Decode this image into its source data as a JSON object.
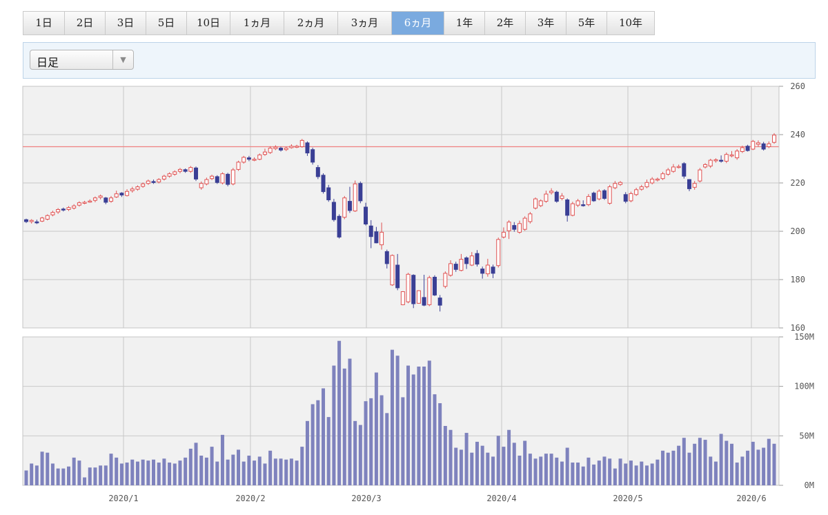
{
  "range_tabs": [
    {
      "label": "1日",
      "w": 60
    },
    {
      "label": "2日",
      "w": 59
    },
    {
      "label": "3日",
      "w": 59
    },
    {
      "label": "5日",
      "w": 59
    },
    {
      "label": "10日",
      "w": 63
    },
    {
      "label": "1ヵ月",
      "w": 78
    },
    {
      "label": "2ヵ月",
      "w": 78
    },
    {
      "label": "3ヵ月",
      "w": 78
    },
    {
      "label": "6ヵ月",
      "w": 76
    },
    {
      "label": "1年",
      "w": 59
    },
    {
      "label": "2年",
      "w": 59
    },
    {
      "label": "3年",
      "w": 59
    },
    {
      "label": "5年",
      "w": 59
    },
    {
      "label": "10年",
      "w": 68
    }
  ],
  "active_tab": "6ヵ月",
  "interval_select": {
    "value": "日足"
  },
  "colors": {
    "up": "#e05050",
    "down": "#3a3f95",
    "volume": "#7e82bd",
    "ref_line": "#f08080",
    "grid": "#c8c8c8"
  },
  "chart_data": {
    "type": "candlestick",
    "price_axis": {
      "min": 160,
      "max": 260,
      "ticks": [
        160,
        180,
        200,
        220,
        240,
        260
      ]
    },
    "volume_axis": {
      "min": 0,
      "max": 150,
      "unit": "M",
      "tick_labels": [
        "0M",
        "50M",
        "100M",
        "150M"
      ]
    },
    "x_labels": [
      "2020/1",
      "2020/2",
      "2020/3",
      "2020/4",
      "2020/5",
      "2020/6"
    ],
    "reference_line": 235,
    "candles": [
      [
        204.8,
        204.0,
        205.2,
        203.4,
        15
      ],
      [
        204.0,
        204.5,
        205.0,
        203.2,
        22
      ],
      [
        203.9,
        203.6,
        204.8,
        203.0,
        20
      ],
      [
        204.2,
        205.5,
        206.0,
        203.8,
        34
      ],
      [
        205.0,
        206.5,
        207.0,
        204.5,
        33
      ],
      [
        206.8,
        207.8,
        208.5,
        206.2,
        22
      ],
      [
        208.0,
        209.0,
        209.6,
        207.2,
        17
      ],
      [
        209.2,
        209.0,
        209.8,
        208.2,
        17
      ],
      [
        209.0,
        209.8,
        210.4,
        208.4,
        19
      ],
      [
        209.6,
        210.5,
        211.2,
        209.0,
        28
      ],
      [
        210.8,
        211.8,
        212.4,
        210.2,
        25
      ],
      [
        212.0,
        212.0,
        212.6,
        211.2,
        8
      ],
      [
        212.2,
        212.5,
        213.2,
        211.8,
        18
      ],
      [
        212.8,
        213.8,
        214.4,
        212.0,
        18
      ],
      [
        214.0,
        214.6,
        215.2,
        213.2,
        20
      ],
      [
        213.8,
        212.0,
        214.2,
        211.2,
        20
      ],
      [
        212.4,
        213.8,
        214.6,
        211.8,
        32
      ],
      [
        214.2,
        215.5,
        216.8,
        213.8,
        28
      ],
      [
        215.8,
        215.0,
        216.2,
        214.2,
        22
      ],
      [
        214.8,
        216.5,
        217.4,
        214.4,
        23
      ],
      [
        216.8,
        217.5,
        218.4,
        216.0,
        26
      ],
      [
        217.4,
        218.4,
        219.0,
        216.8,
        24
      ],
      [
        218.6,
        219.6,
        220.2,
        218.0,
        26
      ],
      [
        219.8,
        220.8,
        221.4,
        219.2,
        25
      ],
      [
        220.6,
        220.2,
        221.4,
        219.6,
        26
      ],
      [
        220.4,
        221.4,
        222.0,
        219.8,
        23
      ],
      [
        221.6,
        222.8,
        223.4,
        221.0,
        27
      ],
      [
        222.8,
        223.8,
        224.4,
        222.2,
        23
      ],
      [
        223.6,
        224.6,
        225.2,
        223.0,
        22
      ],
      [
        224.8,
        225.6,
        226.2,
        224.0,
        25
      ],
      [
        225.5,
        224.8,
        226.0,
        224.2,
        28
      ],
      [
        224.8,
        226.4,
        227.0,
        224.2,
        37
      ],
      [
        226.2,
        221.6,
        226.8,
        220.8,
        43
      ],
      [
        218.0,
        219.8,
        220.6,
        217.2,
        30
      ],
      [
        219.6,
        221.4,
        222.2,
        219.0,
        28
      ],
      [
        221.8,
        222.8,
        223.4,
        221.2,
        39
      ],
      [
        222.6,
        220.2,
        223.2,
        219.6,
        24
      ],
      [
        220.0,
        223.8,
        224.4,
        219.4,
        51
      ],
      [
        223.6,
        219.4,
        224.2,
        218.6,
        26
      ],
      [
        219.6,
        225.4,
        226.2,
        219.0,
        31
      ],
      [
        225.6,
        228.6,
        229.2,
        225.0,
        36
      ],
      [
        228.6,
        230.6,
        231.2,
        228.0,
        24
      ],
      [
        230.4,
        229.8,
        231.2,
        229.0,
        30
      ],
      [
        229.6,
        229.8,
        230.6,
        229.0,
        25
      ],
      [
        229.8,
        231.6,
        232.2,
        229.4,
        29
      ],
      [
        231.8,
        232.8,
        234.2,
        231.2,
        22
      ],
      [
        232.6,
        234.4,
        235.2,
        232.0,
        35
      ],
      [
        234.2,
        234.8,
        235.6,
        233.6,
        27
      ],
      [
        234.4,
        233.6,
        235.0,
        233.0,
        27
      ],
      [
        233.8,
        234.4,
        235.0,
        233.2,
        26
      ],
      [
        234.6,
        235.2,
        236.0,
        234.2,
        27
      ],
      [
        235.0,
        235.2,
        235.8,
        234.4,
        25
      ],
      [
        235.0,
        237.6,
        238.2,
        234.6,
        39
      ],
      [
        236.6,
        232.4,
        237.2,
        231.2,
        65
      ],
      [
        233.8,
        228.6,
        234.6,
        227.6,
        82
      ],
      [
        226.4,
        222.6,
        227.4,
        221.6,
        86
      ],
      [
        223.2,
        216.4,
        224.0,
        215.6,
        98
      ],
      [
        218.0,
        213.0,
        219.2,
        212.2,
        69
      ],
      [
        212.0,
        204.8,
        213.4,
        204.0,
        121
      ],
      [
        206.2,
        197.6,
        207.0,
        197.0,
        146
      ],
      [
        205.8,
        213.8,
        214.6,
        205.0,
        118
      ],
      [
        212.4,
        208.6,
        218.4,
        207.6,
        128
      ],
      [
        208.4,
        219.6,
        221.0,
        208.0,
        65
      ],
      [
        219.8,
        212.6,
        220.6,
        211.6,
        61
      ],
      [
        210.0,
        203.0,
        211.8,
        202.4,
        85
      ],
      [
        202.2,
        197.8,
        204.6,
        193.0,
        88
      ],
      [
        199.8,
        195.2,
        201.8,
        195.0,
        114
      ],
      [
        194.4,
        199.6,
        203.6,
        192.4,
        91
      ],
      [
        191.6,
        186.6,
        192.4,
        184.6,
        73
      ],
      [
        177.8,
        190.0,
        190.4,
        177.4,
        137
      ],
      [
        186.0,
        176.6,
        190.6,
        175.6,
        131
      ],
      [
        169.6,
        175.0,
        175.2,
        169.4,
        89
      ],
      [
        170.8,
        182.2,
        182.8,
        170.2,
        121
      ],
      [
        181.8,
        170.0,
        182.2,
        168.2,
        112
      ],
      [
        170.2,
        175.4,
        175.6,
        170.0,
        120
      ],
      [
        172.6,
        169.4,
        182.0,
        169.0,
        120
      ],
      [
        169.6,
        180.8,
        181.6,
        169.0,
        126
      ],
      [
        181.0,
        173.6,
        181.8,
        173.2,
        92
      ],
      [
        172.4,
        169.4,
        173.6,
        166.8,
        83
      ],
      [
        177.2,
        182.6,
        183.4,
        176.4,
        60
      ],
      [
        181.8,
        186.6,
        188.0,
        181.2,
        56
      ],
      [
        186.4,
        184.2,
        187.4,
        183.2,
        38
      ],
      [
        183.8,
        188.4,
        190.6,
        183.4,
        36
      ],
      [
        189.0,
        186.6,
        189.6,
        184.4,
        53
      ],
      [
        186.0,
        189.8,
        191.4,
        185.6,
        33
      ],
      [
        190.8,
        186.4,
        192.2,
        185.4,
        44
      ],
      [
        184.4,
        182.6,
        185.4,
        180.4,
        40
      ],
      [
        182.4,
        186.0,
        188.6,
        181.2,
        33
      ],
      [
        185.2,
        182.6,
        186.2,
        180.6,
        29
      ],
      [
        185.8,
        196.6,
        197.4,
        185.0,
        50
      ],
      [
        197.6,
        199.6,
        201.6,
        197.0,
        39
      ],
      [
        200.2,
        203.8,
        204.6,
        196.8,
        56
      ],
      [
        202.4,
        200.8,
        203.8,
        199.8,
        43
      ],
      [
        199.6,
        203.2,
        204.4,
        199.0,
        30
      ],
      [
        200.8,
        205.4,
        206.2,
        200.2,
        45
      ],
      [
        204.0,
        207.2,
        208.0,
        203.2,
        32
      ],
      [
        209.6,
        213.4,
        214.0,
        209.0,
        27
      ],
      [
        210.6,
        212.6,
        213.2,
        210.0,
        29
      ],
      [
        212.4,
        215.4,
        216.8,
        211.8,
        32
      ],
      [
        216.0,
        216.6,
        217.8,
        215.2,
        32
      ],
      [
        216.2,
        212.4,
        216.8,
        211.8,
        28
      ],
      [
        213.6,
        214.6,
        215.8,
        212.8,
        24
      ],
      [
        213.0,
        206.6,
        213.6,
        204.0,
        38
      ],
      [
        206.6,
        211.4,
        212.2,
        206.2,
        23
      ],
      [
        210.8,
        212.6,
        213.4,
        210.0,
        23
      ],
      [
        211.0,
        210.8,
        212.8,
        210.2,
        19
      ],
      [
        211.0,
        214.4,
        215.4,
        210.4,
        28
      ],
      [
        215.8,
        212.6,
        216.4,
        212.2,
        21
      ],
      [
        213.4,
        216.6,
        217.4,
        212.8,
        25
      ],
      [
        216.8,
        213.6,
        217.4,
        213.0,
        29
      ],
      [
        211.6,
        218.4,
        219.2,
        211.0,
        27
      ],
      [
        218.0,
        219.8,
        220.8,
        217.4,
        17
      ],
      [
        219.4,
        220.2,
        220.8,
        218.8,
        27
      ],
      [
        215.2,
        212.4,
        216.2,
        211.6,
        22
      ],
      [
        212.6,
        215.6,
        216.4,
        212.0,
        25
      ],
      [
        215.2,
        217.2,
        218.0,
        214.6,
        20
      ],
      [
        217.4,
        218.4,
        219.2,
        216.8,
        24
      ],
      [
        218.4,
        220.2,
        221.4,
        217.8,
        20
      ],
      [
        220.0,
        221.6,
        222.4,
        219.4,
        22
      ],
      [
        221.2,
        221.6,
        222.2,
        220.6,
        26
      ],
      [
        221.8,
        223.8,
        224.6,
        221.2,
        35
      ],
      [
        223.6,
        225.4,
        226.2,
        223.0,
        33
      ],
      [
        224.8,
        226.6,
        227.8,
        224.2,
        35
      ],
      [
        226.6,
        226.8,
        227.6,
        226.0,
        40
      ],
      [
        228.0,
        222.8,
        228.6,
        221.8,
        48
      ],
      [
        221.4,
        217.6,
        221.6,
        216.6,
        33
      ],
      [
        218.2,
        219.8,
        220.8,
        217.2,
        42
      ],
      [
        220.8,
        225.4,
        226.2,
        220.2,
        48
      ],
      [
        226.6,
        227.6,
        228.2,
        226.0,
        46
      ],
      [
        227.0,
        229.4,
        230.0,
        226.2,
        29
      ],
      [
        229.2,
        229.6,
        230.2,
        228.4,
        24
      ],
      [
        229.4,
        229.2,
        231.4,
        228.4,
        52
      ],
      [
        229.0,
        231.8,
        232.6,
        228.2,
        45
      ],
      [
        231.2,
        231.6,
        233.2,
        230.6,
        42
      ],
      [
        230.4,
        233.2,
        234.0,
        229.6,
        23
      ],
      [
        233.0,
        234.6,
        235.4,
        232.4,
        29
      ],
      [
        235.2,
        233.4,
        235.8,
        233.0,
        35
      ],
      [
        234.0,
        237.2,
        237.8,
        233.6,
        44
      ],
      [
        236.0,
        236.6,
        237.6,
        235.0,
        36
      ],
      [
        236.2,
        234.0,
        237.0,
        233.4,
        38
      ],
      [
        235.0,
        236.2,
        237.2,
        234.4,
        47
      ],
      [
        236.8,
        239.8,
        240.6,
        236.2,
        42
      ]
    ]
  }
}
